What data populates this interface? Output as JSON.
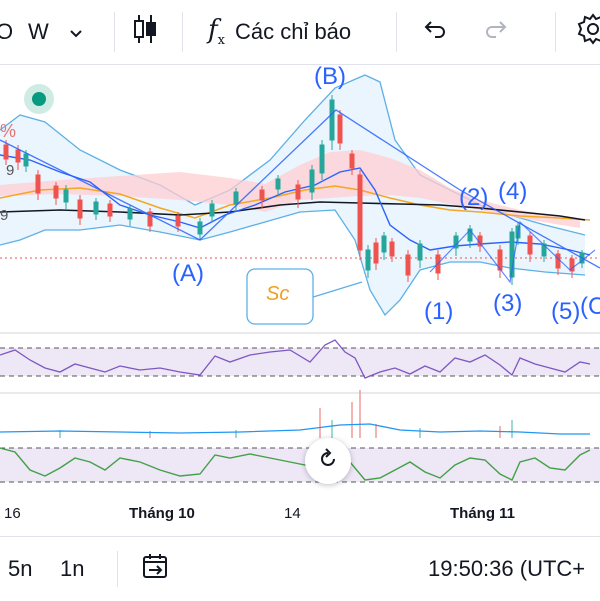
{
  "toolbar": {
    "symbol_partial": "O",
    "interval": "W",
    "indicators_label": "Các chỉ báo"
  },
  "chart": {
    "wave_labels": [
      "(B)",
      "(A)",
      "(2)",
      "(4)",
      "(1)",
      "(3)",
      "(5)",
      "(C",
      "%",
      "9",
      "9"
    ],
    "sc_label": "Sc",
    "x_axis": [
      "16",
      "Tháng 10",
      "14",
      "Tháng 11"
    ],
    "colors": {
      "up": "#26a69a",
      "down": "#ef5350",
      "wave": "#2962ff",
      "cloud": "#ffcdd2",
      "bollinger": "#5db0e6",
      "rsi": "#7e57c2",
      "stoch": "#4caf50",
      "sc": "#f0a020"
    }
  },
  "bottombar": {
    "range_5n": "5n",
    "range_1n": "1n",
    "time": "19:50:36 (UTC+"
  }
}
